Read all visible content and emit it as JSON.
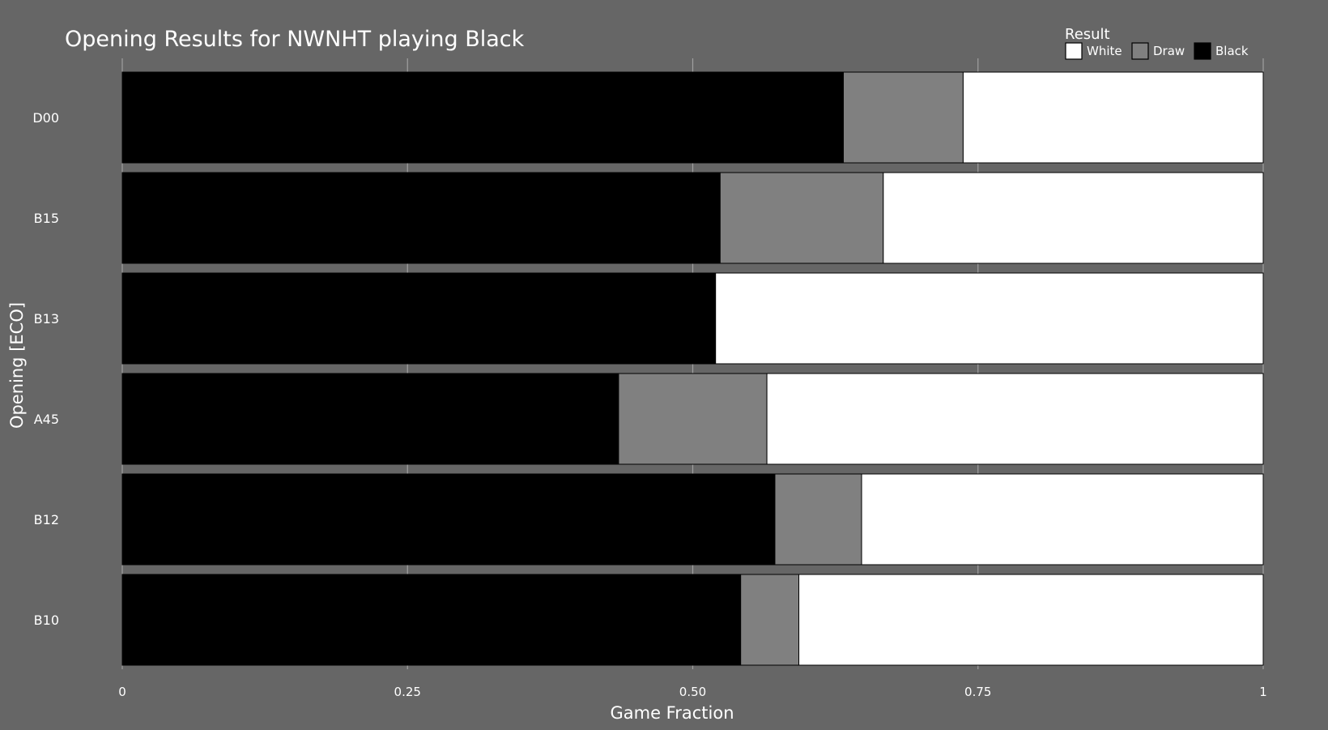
{
  "chart_data": {
    "type": "bar",
    "orientation": "horizontal",
    "stacked": true,
    "title": "Opening Results for NWNHT playing Black",
    "xlabel": "Game Fraction",
    "ylabel": "Opening [ECO]",
    "xlim": [
      0,
      1
    ],
    "xticks": [
      0,
      0.25,
      0.5,
      0.75,
      1
    ],
    "xtick_labels": [
      "0",
      "0.25",
      "0.50",
      "0.75",
      "1"
    ],
    "categories": [
      "D00",
      "B15",
      "B13",
      "A45",
      "B12",
      "B10"
    ],
    "series": [
      {
        "name": "Black",
        "color": "#000000",
        "values": [
          0.632,
          0.524,
          0.52,
          0.435,
          0.572,
          0.542
        ]
      },
      {
        "name": "Draw",
        "color": "#808080",
        "values": [
          0.105,
          0.143,
          0.0,
          0.13,
          0.076,
          0.051
        ]
      },
      {
        "name": "White",
        "color": "#ffffff",
        "values": [
          0.263,
          0.333,
          0.48,
          0.435,
          0.352,
          0.407
        ]
      }
    ],
    "legend": {
      "title": "Result",
      "position": "top-right",
      "entries": [
        "White",
        "Draw",
        "Black"
      ]
    },
    "grid": {
      "x": true,
      "y": false
    },
    "background_color": "#666666",
    "grid_color": "#a0a0a0"
  }
}
